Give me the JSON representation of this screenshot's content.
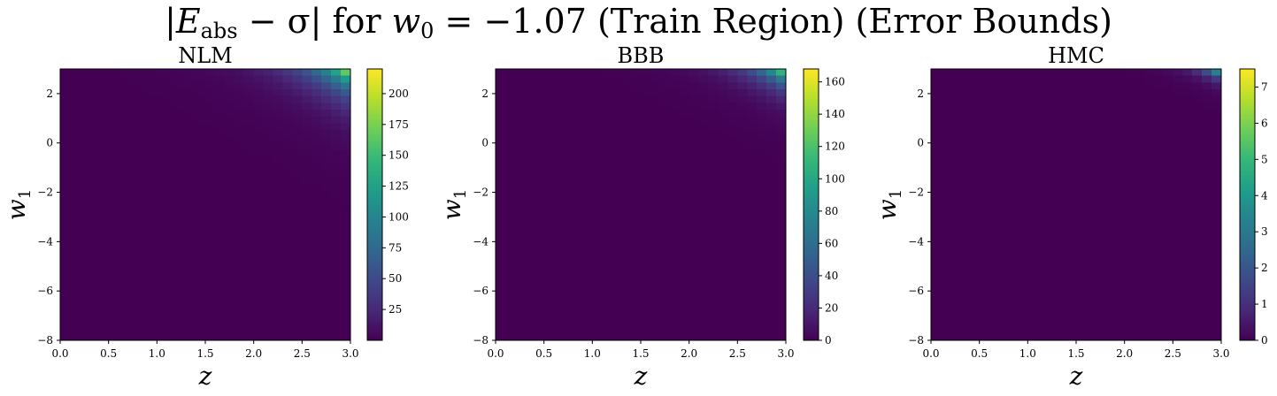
{
  "figure": {
    "title_prefix": "|",
    "title_E": "E",
    "title_E_sub": "abs",
    "title_minus_sigma": " − σ| for ",
    "title_w": "w",
    "title_w_sub": "0",
    "title_suffix": " = −1.07 (Train Region) (Error Bounds)"
  },
  "colors": {
    "viridis": [
      "#440154",
      "#482878",
      "#3e4989",
      "#31688e",
      "#26828e",
      "#1f9e89",
      "#35b779",
      "#6ece58",
      "#b5de2b",
      "#fde725"
    ],
    "axis": "#000000",
    "background": "#ffffff"
  },
  "chart_data": [
    {
      "type": "heatmap",
      "title": "NLM",
      "xlabel": "z",
      "ylabel": "w",
      "ylabel_sub": "1",
      "xlim": [
        0.0,
        3.0
      ],
      "ylim": [
        -8,
        3
      ],
      "xticks": [
        0.0,
        0.5,
        1.0,
        1.5,
        2.0,
        2.5,
        3.0
      ],
      "xtick_labels": [
        "0.0",
        "0.5",
        "1.0",
        "1.5",
        "2.0",
        "2.5",
        "3.0"
      ],
      "yticks": [
        2,
        0,
        -2,
        -4,
        -6,
        -8
      ],
      "ytick_labels": [
        "2",
        "0",
        "−2",
        "−4",
        "−6",
        "−8"
      ],
      "grid_size": [
        30,
        40
      ],
      "peak_value": 220,
      "peak_location": {
        "z": 3.0,
        "w1": 3.0
      },
      "z_decay": 0.38,
      "w1_decay": 0.85,
      "colorbar": {
        "min": 0,
        "max": 220,
        "ticks": [
          25,
          50,
          75,
          100,
          125,
          150,
          175,
          200
        ],
        "tick_labels": [
          "25",
          "50",
          "75",
          "100",
          "125",
          "150",
          "175",
          "200"
        ]
      }
    },
    {
      "type": "heatmap",
      "title": "BBB",
      "xlabel": "z",
      "ylabel": "w",
      "ylabel_sub": "1",
      "xlim": [
        0.0,
        3.0
      ],
      "ylim": [
        -8,
        3
      ],
      "xticks": [
        0.0,
        0.5,
        1.0,
        1.5,
        2.0,
        2.5,
        3.0
      ],
      "xtick_labels": [
        "0.0",
        "0.5",
        "1.0",
        "1.5",
        "2.0",
        "2.5",
        "3.0"
      ],
      "yticks": [
        2,
        0,
        -2,
        -4,
        -6,
        -8
      ],
      "ytick_labels": [
        "2",
        "0",
        "−2",
        "−4",
        "−6",
        "−8"
      ],
      "grid_size": [
        30,
        40
      ],
      "peak_value": 160,
      "peak_location": {
        "z": 3.0,
        "w1": 3.0
      },
      "z_decay": 0.3,
      "w1_decay": 0.6,
      "colorbar": {
        "min": 0,
        "max": 168,
        "ticks": [
          0,
          20,
          40,
          60,
          80,
          100,
          120,
          140,
          160
        ],
        "tick_labels": [
          "0",
          "20",
          "40",
          "60",
          "80",
          "100",
          "120",
          "140",
          "160"
        ]
      }
    },
    {
      "type": "heatmap",
      "title": "HMC",
      "xlabel": "z",
      "ylabel": "w",
      "ylabel_sub": "1",
      "xlim": [
        0.0,
        3.0
      ],
      "ylim": [
        -8,
        3
      ],
      "xticks": [
        0.0,
        0.5,
        1.0,
        1.5,
        2.0,
        2.5,
        3.0
      ],
      "xtick_labels": [
        "0.0",
        "0.5",
        "1.0",
        "1.5",
        "2.0",
        "2.5",
        "3.0"
      ],
      "yticks": [
        2,
        0,
        -2,
        -4,
        -6,
        -8
      ],
      "ytick_labels": [
        "2",
        "0",
        "−2",
        "−4",
        "−6",
        "−8"
      ],
      "grid_size": [
        30,
        40
      ],
      "peak_value": 7.3,
      "peak_location": {
        "z": 3.0,
        "w1": 3.0
      },
      "z_decay": 0.16,
      "w1_decay": 0.28,
      "colorbar": {
        "min": 0,
        "max": 7.5,
        "ticks": [
          0,
          1,
          2,
          3,
          4,
          5,
          6,
          7
        ],
        "tick_labels": [
          "0",
          "1",
          "2",
          "3",
          "4",
          "5",
          "6",
          "7"
        ]
      }
    }
  ]
}
